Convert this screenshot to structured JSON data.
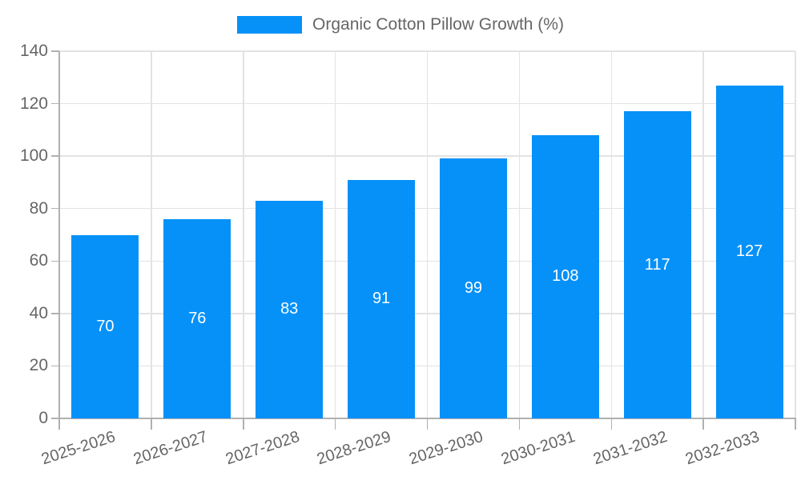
{
  "colors": {
    "bar": "#0591F8",
    "bar_label": "#FFFFFF",
    "text": "#666666",
    "grid": "#E3E3E3",
    "axis": "#B0B0B0"
  },
  "chart_data": {
    "type": "bar",
    "title": "",
    "legend": "Organic Cotton Pillow Growth (%)",
    "legend_position": "top",
    "categories": [
      "2025-2026",
      "2026-2027",
      "2027-2028",
      "2028-2029",
      "2029-2030",
      "2030-2031",
      "2031-2032",
      "2032-2033"
    ],
    "values": [
      70,
      76,
      83,
      91,
      99,
      108,
      117,
      127
    ],
    "bar_value_labels": [
      "70",
      "76",
      "83",
      "91",
      "99",
      "108",
      "117",
      "127"
    ],
    "xlabel": "",
    "ylabel": "",
    "ylim": [
      0,
      140
    ],
    "ytick_step": 20,
    "yticks": [
      0,
      20,
      40,
      60,
      80,
      100,
      120,
      140
    ],
    "grid": true
  }
}
